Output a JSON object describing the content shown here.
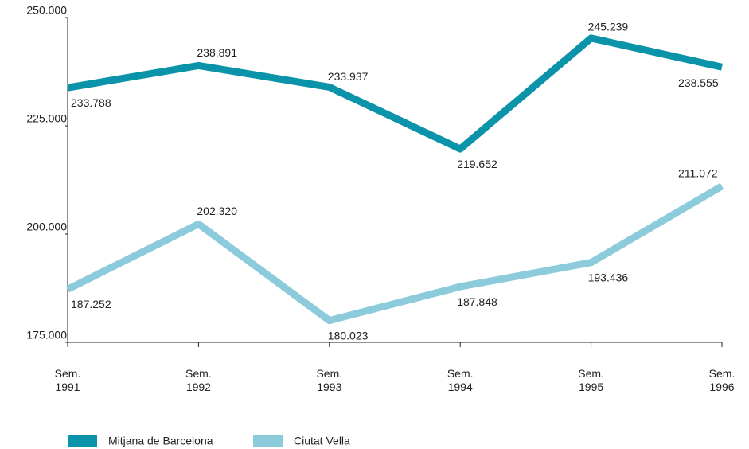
{
  "chart_data": {
    "type": "line",
    "categories": [
      "Sem. 1991",
      "Sem. 1992",
      "Sem. 1993",
      "Sem. 1994",
      "Sem. 1995",
      "Sem. 1996"
    ],
    "series": [
      {
        "name": "Mitjana de Barcelona",
        "color": "#0a93a9",
        "values": [
          233788,
          238891,
          233937,
          219652,
          245239,
          238555
        ],
        "value_labels": [
          "233.788",
          "238.891",
          "233.937",
          "219.652",
          "245.239",
          "238.555"
        ]
      },
      {
        "name": "Ciutat Vella",
        "color": "#8ccbdb",
        "values": [
          187252,
          202320,
          180023,
          187848,
          193436,
          211072
        ],
        "value_labels": [
          "187.252",
          "202.320",
          "180.023",
          "187.848",
          "193.436",
          "211.072"
        ]
      }
    ],
    "ylim": [
      175000,
      250000
    ],
    "yticks": [
      {
        "value": 175000,
        "label": "175.000"
      },
      {
        "value": 200000,
        "label": "200.000"
      },
      {
        "value": 225000,
        "label": "225.000"
      },
      {
        "value": 250000,
        "label": "250.000"
      }
    ],
    "legend": "bottom-left"
  }
}
